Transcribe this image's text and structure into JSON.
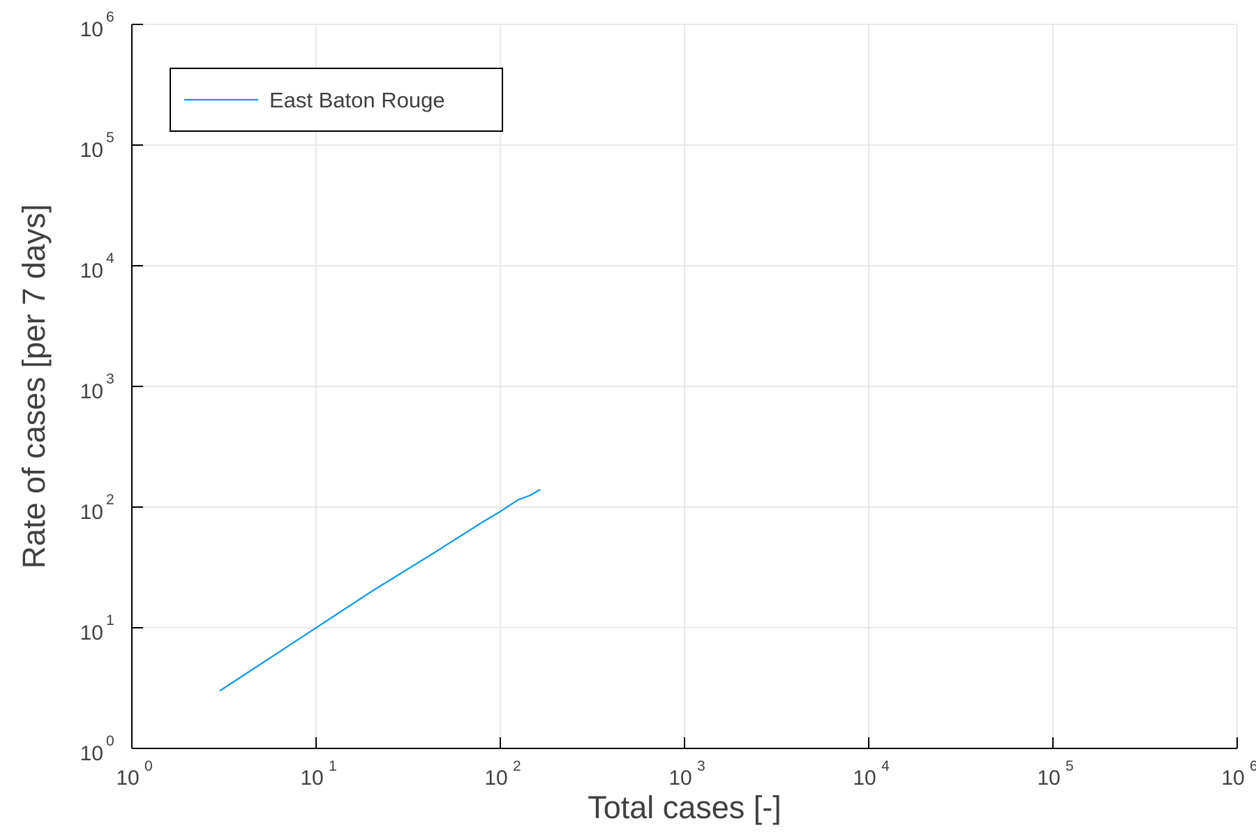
{
  "chart_data": {
    "type": "line",
    "title": "",
    "xlabel": "Total cases [-]",
    "ylabel": "Rate of cases [per 7 days]",
    "xscale": "log",
    "yscale": "log",
    "xlim": [
      1,
      1000000
    ],
    "ylim": [
      1,
      1000000
    ],
    "grid": true,
    "legend_position": "top-left",
    "x_ticks": [
      {
        "base": "10",
        "exp": "0",
        "value": 1
      },
      {
        "base": "10",
        "exp": "1",
        "value": 10
      },
      {
        "base": "10",
        "exp": "2",
        "value": 100
      },
      {
        "base": "10",
        "exp": "3",
        "value": 1000
      },
      {
        "base": "10",
        "exp": "4",
        "value": 10000
      },
      {
        "base": "10",
        "exp": "5",
        "value": 100000
      },
      {
        "base": "10",
        "exp": "6",
        "value": 1000000
      }
    ],
    "y_ticks": [
      {
        "base": "10",
        "exp": "0",
        "value": 1
      },
      {
        "base": "10",
        "exp": "1",
        "value": 10
      },
      {
        "base": "10",
        "exp": "2",
        "value": 100
      },
      {
        "base": "10",
        "exp": "3",
        "value": 1000
      },
      {
        "base": "10",
        "exp": "4",
        "value": 10000
      },
      {
        "base": "10",
        "exp": "5",
        "value": 100000
      },
      {
        "base": "10",
        "exp": "6",
        "value": 1000000
      }
    ],
    "series": [
      {
        "name": "East Baton Rouge",
        "color": "#009af9",
        "x": [
          3,
          5,
          10,
          20,
          45,
          80,
          100,
          125,
          145,
          165
        ],
        "y": [
          3,
          5,
          10,
          20,
          43,
          75,
          92,
          115,
          125,
          140
        ]
      }
    ]
  }
}
